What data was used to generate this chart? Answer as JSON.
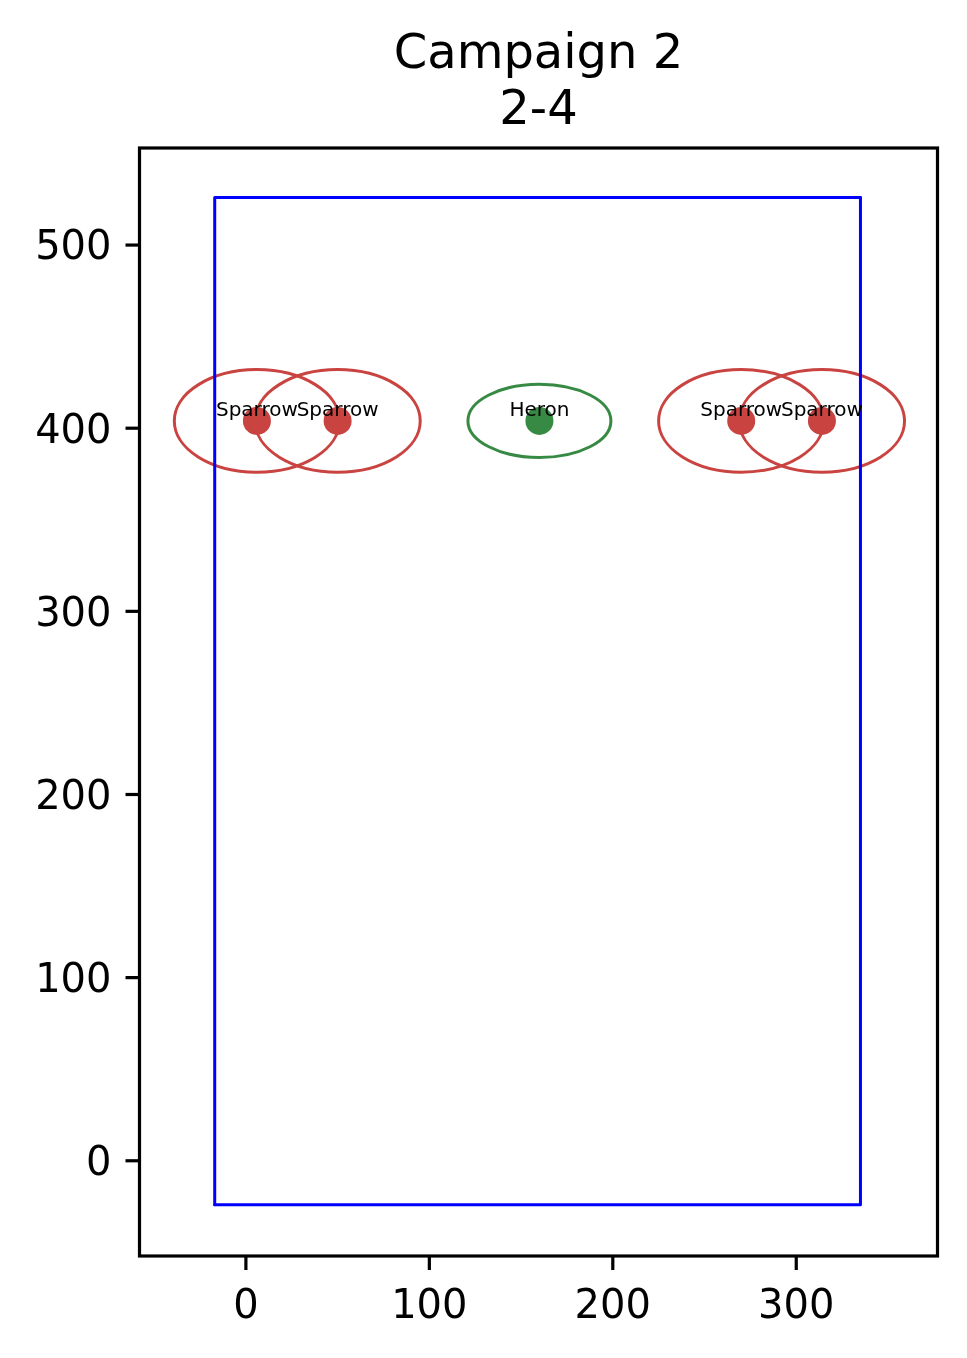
{
  "chart_data": {
    "type": "scatter",
    "title": "Campaign 2\n2-4",
    "xlim": [
      -58,
      377
    ],
    "ylim": [
      -52,
      553
    ],
    "xticks": [
      0,
      100,
      200,
      300
    ],
    "yticks": [
      0,
      100,
      200,
      300,
      400,
      500
    ],
    "series": [
      {
        "type": "line",
        "color": "#0000ff",
        "x": [
          -17,
          335,
          335
        ],
        "values": [
          -24,
          -24,
          526
        ]
      },
      {
        "type": "line",
        "color": "#0000ff",
        "x": [
          335,
          -17,
          -17
        ],
        "values": [
          526,
          526,
          -24
        ]
      },
      {
        "name": "Sparrow",
        "color": "#c94340",
        "marker": "circle",
        "x": [
          6,
          50,
          270,
          314
        ],
        "values": [
          404,
          404,
          404,
          404
        ]
      },
      {
        "name": "Heron",
        "color": "#378a43",
        "marker": "circle",
        "x": [
          160
        ],
        "values": [
          404
        ]
      }
    ]
  }
}
